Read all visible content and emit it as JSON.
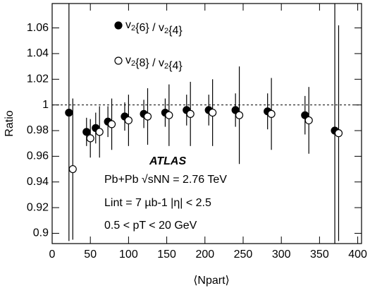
{
  "chart_data": {
    "type": "scatter",
    "xlabel": "⟨Npart⟩",
    "ylabel": "Ratio",
    "xlim": [
      0,
      405
    ],
    "ylim": [
      0.892,
      1.079
    ],
    "xticks": [
      0,
      50,
      100,
      150,
      200,
      250,
      300,
      350,
      400
    ],
    "yticks": [
      0.9,
      0.92,
      0.94,
      0.96,
      0.98,
      1,
      1.02,
      1.04,
      1.06
    ],
    "hline": 1,
    "annotations": [
      "ATLAS",
      "Pb+Pb √sNN = 2.76 TeV",
      "Lint = 7 µb-1   |η| < 2.5",
      "0.5 < pT < 20 GeV"
    ],
    "series": [
      {
        "name": "v2{6} / v2{4}",
        "color": "#000000",
        "marker": "filled",
        "x": [
          22,
          45,
          57,
          73,
          95,
          120,
          148,
          176,
          205,
          240,
          282,
          331,
          370
        ],
        "values": [
          0.994,
          0.979,
          0.982,
          0.987,
          0.991,
          0.993,
          0.994,
          0.996,
          0.996,
          0.996,
          0.995,
          0.992,
          0.98
        ],
        "errors": [
          0.1,
          0.011,
          0.012,
          0.012,
          0.011,
          0.011,
          0.011,
          0.012,
          0.012,
          0.013,
          0.014,
          0.015,
          0.1
        ]
      },
      {
        "name": "v2{8} / v2{4}",
        "color": "#000000",
        "marker": "open",
        "x": [
          27,
          50,
          62,
          78,
          100,
          125,
          153,
          181,
          210,
          245,
          287,
          336,
          375
        ],
        "values": [
          0.95,
          0.974,
          0.979,
          0.985,
          0.988,
          0.991,
          0.992,
          0.993,
          0.994,
          0.992,
          0.993,
          0.988,
          0.978
        ],
        "errors": [
          0.055,
          0.015,
          0.02,
          0.02,
          0.02,
          0.022,
          0.024,
          0.025,
          0.026,
          0.038,
          0.028,
          0.026,
          0.084
        ]
      }
    ]
  }
}
